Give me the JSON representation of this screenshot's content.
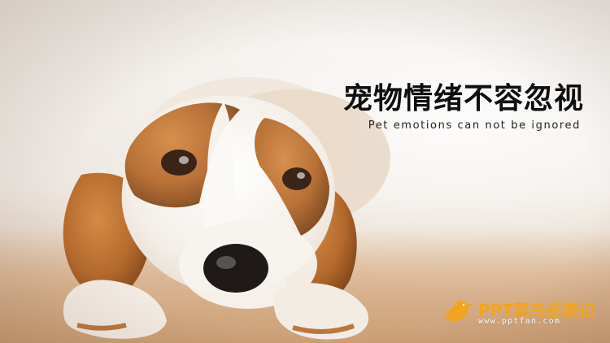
{
  "slide": {
    "title_cn": "宠物情绪不容忽视",
    "title_en": "Pet emotions can not be ignored"
  },
  "brand": {
    "name": "PPT菜鸟逆袭记",
    "url": "www.pptfan.com",
    "icon": "bird-icon",
    "color": "#f2a51a"
  },
  "photo": {
    "subject": "beagle-dog",
    "colors": {
      "background": "#efe9e3",
      "floor": "#d6a87d",
      "fur_brown": "#b56a2d",
      "fur_white": "#f7f3ee",
      "nose": "#1f1a18"
    }
  }
}
